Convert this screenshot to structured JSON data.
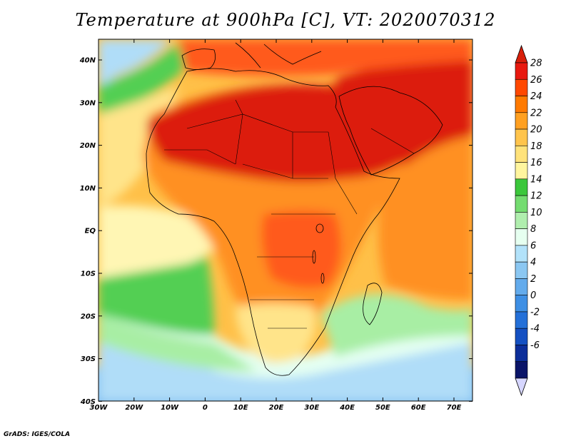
{
  "title": "Temperature at 900hPa [C], VT: 2020070312",
  "credit": "GrADS: IGES/COLA",
  "map": {
    "lat_labels": [
      "40N",
      "30N",
      "20N",
      "10N",
      "EQ",
      "10S",
      "20S",
      "30S",
      "40S"
    ],
    "lon_labels": [
      "30W",
      "20W",
      "10W",
      "0",
      "10E",
      "20E",
      "30E",
      "40E",
      "50E",
      "60E",
      "70E"
    ]
  },
  "colorbar": {
    "labels": [
      "28",
      "26",
      "24",
      "22",
      "20",
      "18",
      "16",
      "14",
      "12",
      "10",
      "8",
      "6",
      "4",
      "2",
      "0",
      "-2",
      "-4",
      "-6"
    ],
    "colors": [
      "#e8190f",
      "#ff4800",
      "#ff7a00",
      "#ffa021",
      "#ffc44c",
      "#ffe27a",
      "#fff59e",
      "#3bc73b",
      "#74dc70",
      "#b0eeae",
      "#e6fff0",
      "#b2e2fa",
      "#8bc7f2",
      "#63abec",
      "#3e8fe4",
      "#2470d8",
      "#1450c2",
      "#0c2e9a",
      "#0a1468"
    ],
    "top_color": "#d81f0a",
    "bottom_color": "#d6d6ff"
  },
  "colors": {
    "hot": "#dc1e0a",
    "warm": "#ff5a1a",
    "orange": "#ff9020",
    "light_orange": "#ffc048",
    "yellow": "#ffe48a",
    "pale": "#fff6b4",
    "green": "#52cf52",
    "light_green": "#a8eea4",
    "mint": "#e4fff2",
    "light_blue": "#b0ddf8",
    "blue": "#7cbcf0",
    "border": "#000000"
  }
}
